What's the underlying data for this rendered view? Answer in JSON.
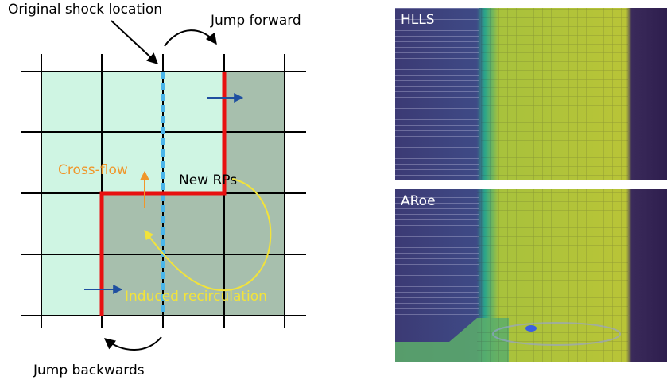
{
  "labels": {
    "shock": "Original shock location",
    "forward": "Jump forward",
    "crossflow": "Cross-flow",
    "new_rps": "New RPs",
    "recirculation": "Induced recirculation",
    "backwards": "Jump backwards"
  },
  "panels": [
    {
      "label": "HLLS"
    },
    {
      "label": "ARoe"
    }
  ]
}
